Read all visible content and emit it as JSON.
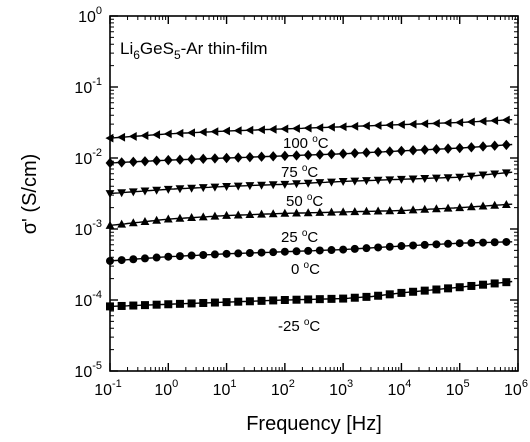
{
  "chart_data": {
    "type": "scatter",
    "title": "Li6GeS5-Ar thin-film",
    "title_parts": {
      "base1": "Li",
      "sub1": "6",
      "base2": "GeS",
      "sub2": "5",
      "rest": "-Ar thin-film"
    },
    "xlabel": "Frequency [Hz]",
    "ylabel": "σ' (S/cm)",
    "x_scale": "log",
    "y_scale": "log",
    "xlim_exp": [
      -1,
      6
    ],
    "ylim_exp": [
      -5,
      0
    ],
    "x_ticks": [
      {
        "base": "10",
        "exp": "-1"
      },
      {
        "base": "10",
        "exp": "0"
      },
      {
        "base": "10",
        "exp": "1"
      },
      {
        "base": "10",
        "exp": "2"
      },
      {
        "base": "10",
        "exp": "3"
      },
      {
        "base": "10",
        "exp": "4"
      },
      {
        "base": "10",
        "exp": "5"
      },
      {
        "base": "10",
        "exp": "6"
      }
    ],
    "y_ticks": [
      {
        "base": "10",
        "exp": "-5"
      },
      {
        "base": "10",
        "exp": "-4"
      },
      {
        "base": "10",
        "exp": "-3"
      },
      {
        "base": "10",
        "exp": "-2"
      },
      {
        "base": "10",
        "exp": "-1"
      },
      {
        "base": "10",
        "exp": "0"
      }
    ],
    "grid": false,
    "series": [
      {
        "name": "-25 °C",
        "name_parts": {
          "value": "-25 ",
          "unit": "C",
          "deg": "o"
        },
        "marker": "square",
        "x_log": [
          -1,
          0,
          1,
          2,
          2.5,
          3,
          3.5,
          4,
          5,
          5.9
        ],
        "y_log": [
          -4.09,
          -4.06,
          -4.03,
          -4.0,
          -3.99,
          -3.98,
          -3.95,
          -3.9,
          -3.82,
          -3.74
        ]
      },
      {
        "name": "0 °C",
        "name_parts": {
          "value": "0 ",
          "unit": "C",
          "deg": "o"
        },
        "marker": "circle",
        "x_log": [
          -1,
          0,
          1,
          2,
          3,
          4,
          5,
          5.9
        ],
        "y_log": [
          -3.45,
          -3.39,
          -3.35,
          -3.32,
          -3.29,
          -3.24,
          -3.2,
          -3.18
        ]
      },
      {
        "name": "25 °C",
        "name_parts": {
          "value": "25 ",
          "unit": "C",
          "deg": "o"
        },
        "marker": "triangle-up",
        "x_log": [
          -1,
          0,
          1,
          2,
          3,
          4,
          5,
          5.9
        ],
        "y_log": [
          -2.95,
          -2.86,
          -2.81,
          -2.78,
          -2.76,
          -2.74,
          -2.7,
          -2.65
        ]
      },
      {
        "name": "50 °C",
        "name_parts": {
          "value": "50 ",
          "unit": "C",
          "deg": "o"
        },
        "marker": "triangle-down",
        "x_log": [
          -1,
          0,
          1,
          2,
          3,
          4,
          5,
          5.9
        ],
        "y_log": [
          -2.5,
          -2.44,
          -2.4,
          -2.37,
          -2.33,
          -2.3,
          -2.27,
          -2.2
        ]
      },
      {
        "name": "75 °C",
        "name_parts": {
          "value": "75 ",
          "unit": "C",
          "deg": "o"
        },
        "marker": "diamond",
        "x_log": [
          -1,
          0,
          1,
          2,
          3,
          4,
          5,
          5.9
        ],
        "y_log": [
          -2.07,
          -2.03,
          -2.0,
          -1.97,
          -1.94,
          -1.9,
          -1.86,
          -1.81
        ]
      },
      {
        "name": "100 °C",
        "name_parts": {
          "value": "100 ",
          "unit": "C",
          "deg": "o"
        },
        "marker": "triangle-left",
        "x_log": [
          -1,
          0,
          1,
          2,
          3,
          4,
          5,
          5.9
        ],
        "y_log": [
          -1.72,
          -1.66,
          -1.62,
          -1.59,
          -1.56,
          -1.53,
          -1.5,
          -1.46
        ]
      }
    ]
  }
}
